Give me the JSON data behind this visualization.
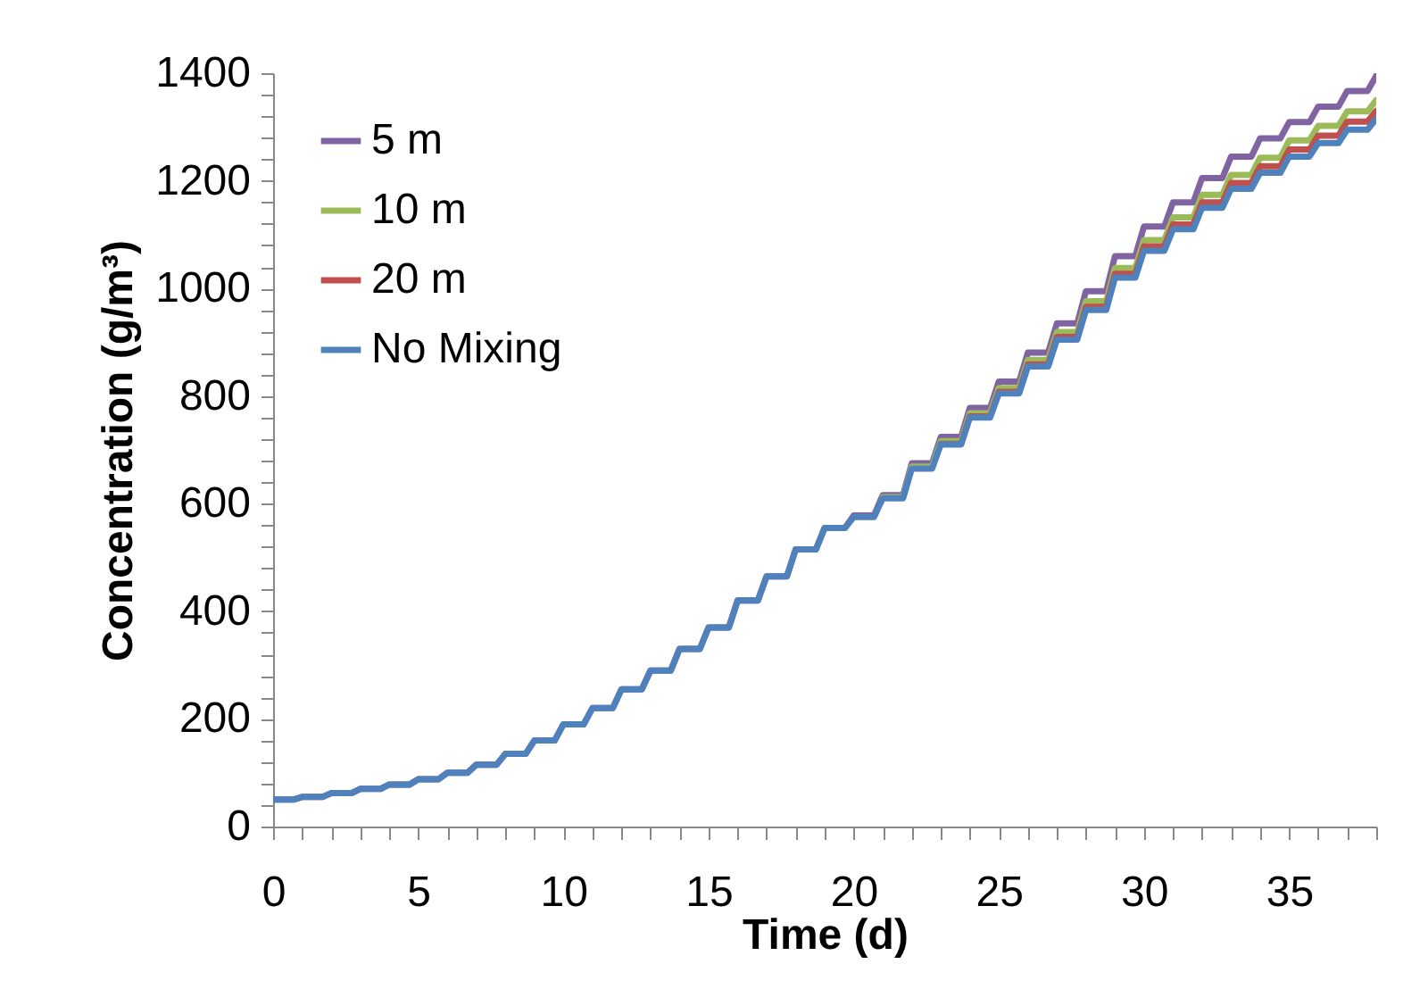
{
  "chart_data": {
    "type": "line",
    "xlabel": "Time (d)",
    "ylabel": "Concentration (g/m³)",
    "x": [
      0,
      0.7,
      1,
      1.7,
      2,
      2.7,
      3,
      3.7,
      4,
      4.7,
      5,
      5.7,
      6,
      6.7,
      7,
      7.7,
      8,
      8.7,
      9,
      9.7,
      10,
      10.7,
      11,
      11.7,
      12,
      12.7,
      13,
      13.7,
      14,
      14.7,
      15,
      15.7,
      16,
      16.7,
      17,
      17.7,
      18,
      18.7,
      19,
      19.7,
      20,
      20.7,
      21,
      21.7,
      22,
      22.7,
      23,
      23.7,
      24,
      24.7,
      25,
      25.7,
      26,
      26.7,
      27,
      27.7,
      28,
      28.7,
      29,
      29.7,
      30,
      30.7,
      31,
      31.7,
      32,
      32.7,
      33,
      33.7,
      34,
      34.7,
      35,
      35.7,
      36,
      36.7,
      37,
      37.7,
      38
    ],
    "series": [
      {
        "name": "5 m",
        "color": "#8064a2",
        "values": [
          50,
          50,
          55,
          55,
          62,
          62,
          70,
          70,
          78,
          78,
          88,
          88,
          100,
          100,
          115,
          115,
          135,
          135,
          160,
          160,
          190,
          190,
          220,
          220,
          255,
          255,
          290,
          290,
          330,
          330,
          370,
          370,
          420,
          420,
          465,
          465,
          515,
          515,
          555,
          555,
          578,
          578,
          616,
          616,
          675,
          675,
          724,
          724,
          778,
          778,
          827,
          827,
          881,
          881,
          935,
          935,
          995,
          995,
          1060,
          1060,
          1115,
          1115,
          1160,
          1160,
          1205,
          1205,
          1245,
          1245,
          1279,
          1279,
          1309,
          1309,
          1338,
          1338,
          1367,
          1367,
          1395
        ]
      },
      {
        "name": "10 m",
        "color": "#9bbb59",
        "values": [
          null,
          null,
          null,
          null,
          null,
          null,
          null,
          null,
          null,
          null,
          null,
          null,
          null,
          null,
          null,
          null,
          null,
          null,
          null,
          null,
          null,
          null,
          null,
          null,
          null,
          null,
          null,
          null,
          null,
          null,
          null,
          null,
          null,
          null,
          null,
          null,
          null,
          null,
          null,
          null,
          null,
          null,
          612,
          612,
          669,
          669,
          716,
          716,
          768,
          768,
          815,
          815,
          867,
          867,
          919,
          919,
          976,
          976,
          1038,
          1038,
          1090,
          1090,
          1132,
          1132,
          1174,
          1174,
          1211,
          1211,
          1243,
          1243,
          1275,
          1275,
          1302,
          1302,
          1329,
          1329,
          1350
        ]
      },
      {
        "name": "20 m",
        "color": "#c0504d",
        "values": [
          null,
          null,
          null,
          null,
          null,
          null,
          null,
          null,
          null,
          null,
          null,
          null,
          null,
          null,
          null,
          null,
          null,
          null,
          null,
          null,
          null,
          null,
          null,
          null,
          null,
          null,
          null,
          null,
          null,
          null,
          null,
          null,
          null,
          null,
          null,
          null,
          null,
          null,
          null,
          null,
          null,
          null,
          null,
          null,
          null,
          null,
          711,
          711,
          762,
          762,
          808,
          808,
          859,
          859,
          910,
          910,
          966,
          966,
          1027,
          1027,
          1078,
          1078,
          1119,
          1119,
          1160,
          1160,
          1196,
          1196,
          1227,
          1227,
          1258,
          1258,
          1284,
          1284,
          1310,
          1310,
          1330
        ]
      },
      {
        "name": "No Mixing",
        "color": "#4f81bd",
        "values": [
          50,
          50,
          55,
          55,
          62,
          62,
          70,
          70,
          78,
          78,
          88,
          88,
          100,
          100,
          115,
          115,
          135,
          135,
          160,
          160,
          190,
          190,
          220,
          220,
          255,
          255,
          290,
          290,
          330,
          330,
          370,
          370,
          420,
          420,
          465,
          465,
          515,
          515,
          555,
          555,
          575,
          575,
          610,
          610,
          665,
          665,
          710,
          710,
          760,
          760,
          805,
          805,
          855,
          855,
          905,
          905,
          960,
          960,
          1020,
          1020,
          1070,
          1070,
          1110,
          1110,
          1150,
          1150,
          1185,
          1185,
          1215,
          1215,
          1245,
          1245,
          1270,
          1270,
          1295,
          1295,
          1315
        ]
      }
    ],
    "xlim": [
      0,
      38
    ],
    "xticks": [
      0,
      {
        "value": 1,
        "label": null
      },
      {
        "value": 2,
        "label": null
      },
      {
        "value": 3,
        "label": null
      },
      {
        "value": 4,
        "label": null
      },
      5,
      {
        "value": 6,
        "label": null
      },
      {
        "value": 7,
        "label": null
      },
      {
        "value": 8,
        "label": null
      },
      {
        "value": 9,
        "label": null
      },
      10,
      {
        "value": 11,
        "label": null
      },
      {
        "value": 12,
        "label": null
      },
      {
        "value": 13,
        "label": null
      },
      {
        "value": 14,
        "label": null
      },
      15,
      {
        "value": 16,
        "label": null
      },
      {
        "value": 17,
        "label": null
      },
      {
        "value": 18,
        "label": null
      },
      {
        "value": 19,
        "label": null
      },
      20,
      {
        "value": 21,
        "label": null
      },
      {
        "value": 22,
        "label": null
      },
      {
        "value": 23,
        "label": null
      },
      {
        "value": 24,
        "label": null
      },
      25,
      {
        "value": 26,
        "label": null
      },
      {
        "value": 27,
        "label": null
      },
      {
        "value": 28,
        "label": null
      },
      {
        "value": 29,
        "label": null
      },
      30,
      {
        "value": 31,
        "label": null
      },
      {
        "value": 32,
        "label": null
      },
      {
        "value": 33,
        "label": null
      },
      {
        "value": 34,
        "label": null
      },
      35,
      {
        "value": 36,
        "label": null
      },
      {
        "value": 37,
        "label": null
      },
      {
        "value": 38,
        "label": null
      }
    ],
    "ylim": [
      0,
      1400
    ],
    "yticks": [
      0,
      {
        "value": 40,
        "label": null
      },
      {
        "value": 80,
        "label": null
      },
      {
        "value": 120,
        "label": null
      },
      {
        "value": 160,
        "label": null
      },
      200,
      {
        "value": 240,
        "label": null
      },
      {
        "value": 280,
        "label": null
      },
      {
        "value": 320,
        "label": null
      },
      {
        "value": 360,
        "label": null
      },
      400,
      {
        "value": 440,
        "label": null
      },
      {
        "value": 480,
        "label": null
      },
      {
        "value": 520,
        "label": null
      },
      {
        "value": 560,
        "label": null
      },
      600,
      {
        "value": 640,
        "label": null
      },
      {
        "value": 680,
        "label": null
      },
      {
        "value": 720,
        "label": null
      },
      {
        "value": 760,
        "label": null
      },
      800,
      {
        "value": 840,
        "label": null
      },
      {
        "value": 880,
        "label": null
      },
      {
        "value": 920,
        "label": null
      },
      {
        "value": 960,
        "label": null
      },
      1000,
      {
        "value": 1040,
        "label": null
      },
      {
        "value": 1080,
        "label": null
      },
      {
        "value": 1120,
        "label": null
      },
      {
        "value": 1160,
        "label": null
      },
      1200,
      {
        "value": 1240,
        "label": null
      },
      {
        "value": 1280,
        "label": null
      },
      {
        "value": 1320,
        "label": null
      },
      {
        "value": 1360,
        "label": null
      },
      1400
    ],
    "grid": false,
    "legend": "top left",
    "marker": "none",
    "line_style": "solid"
  }
}
